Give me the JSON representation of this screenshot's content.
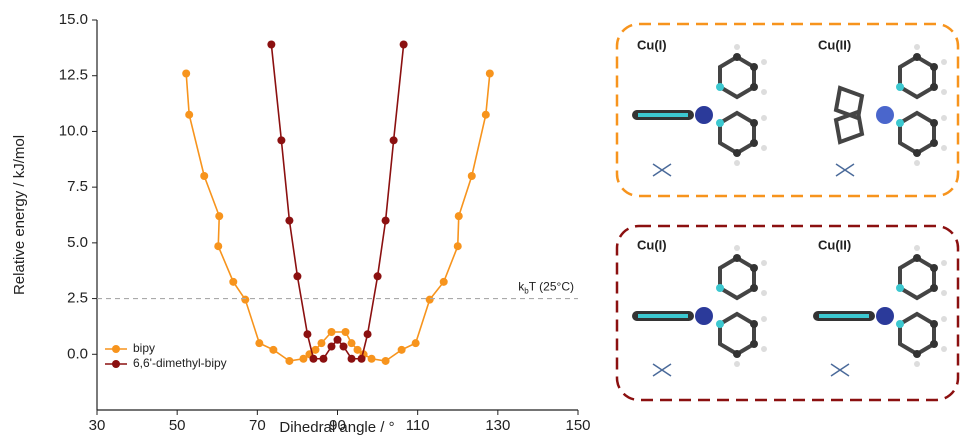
{
  "chart_data": {
    "type": "line",
    "x_label": "Dihedral angle / °",
    "y_label": "Relative energy / kJ/mol",
    "xlim": [
      30,
      150
    ],
    "xticks": [
      30,
      50,
      70,
      90,
      110,
      130,
      150
    ],
    "ylim": [
      -2.5,
      15
    ],
    "yticks": [
      {
        "value": 0,
        "label": "0.0"
      },
      {
        "value": 2.5,
        "label": "2.5"
      },
      {
        "value": 5,
        "label": "5.0"
      },
      {
        "value": 7.5,
        "label": "7.5"
      },
      {
        "value": 10,
        "label": "10.0"
      },
      {
        "value": 12.5,
        "label": "12.5"
      },
      {
        "value": 15,
        "label": "15.0"
      }
    ],
    "legend_position": "lower left",
    "threshold": {
      "value": 2.5,
      "label_main": "k",
      "label_sub": "b",
      "label_rest": "T (25°C)",
      "color": "#aaaaaa"
    },
    "series": [
      {
        "name": "bipy",
        "color": "#f7941d",
        "x": [
          52.25,
          53,
          56.75,
          60.5,
          60.25,
          64,
          67,
          70.5,
          74,
          78,
          81.5,
          83,
          84.5,
          86,
          88.5,
          92,
          93.5,
          95,
          96.5,
          98.5,
          102,
          106,
          109.5,
          113,
          116.5,
          120,
          120.25,
          123.5,
          127,
          128
        ],
        "values": [
          12.6,
          10.75,
          8.0,
          6.2,
          4.85,
          3.25,
          2.45,
          0.5,
          0.2,
          -0.3,
          -0.2,
          0.0,
          0.2,
          0.5,
          1.0,
          1.0,
          0.5,
          0.2,
          0.0,
          -0.2,
          -0.3,
          0.2,
          0.5,
          2.45,
          3.25,
          4.85,
          6.2,
          8.0,
          10.75,
          12.6
        ]
      },
      {
        "name": "6,6'-dimethyl-bipy",
        "color": "#8b1010",
        "x": [
          73.5,
          76,
          78,
          80,
          82.5,
          84,
          86.5,
          88.5,
          90,
          91.5,
          93.5,
          96,
          97.5,
          100,
          102,
          104,
          106.5
        ],
        "values": [
          13.9,
          9.6,
          6.0,
          3.5,
          0.9,
          -0.2,
          -0.2,
          0.35,
          0.65,
          0.35,
          -0.2,
          -0.2,
          0.9,
          3.5,
          6.0,
          9.6,
          13.9
        ]
      }
    ],
    "panels": [
      {
        "color": "#f7941d",
        "labels": [
          "Cu(I)",
          "Cu(II)"
        ]
      },
      {
        "color": "#8b1010",
        "labels": [
          "Cu(I)",
          "Cu(II)"
        ]
      }
    ]
  }
}
